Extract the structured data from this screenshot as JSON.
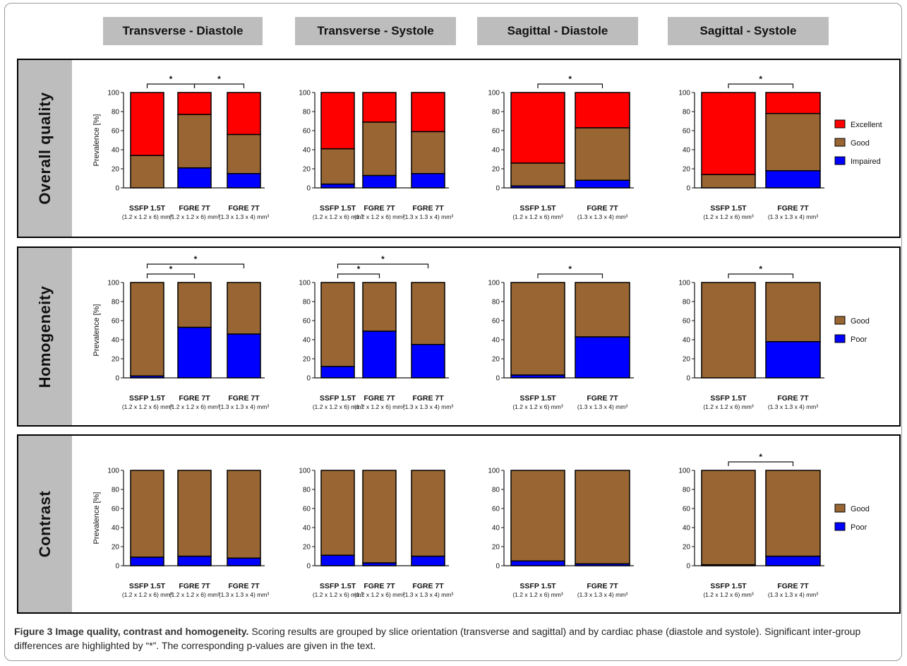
{
  "column_headers": [
    "Transverse - Diastole",
    "Transverse - Systole",
    "Sagittal - Diastole",
    "Sagittal - Systole"
  ],
  "row_labels": [
    "Overall quality",
    "Homogeneity",
    "Contrast"
  ],
  "y_axis_label": "Prevalence [%]",
  "y_ticks": [
    "0",
    "20",
    "40",
    "60",
    "80",
    "100"
  ],
  "groups_3": [
    {
      "name": "SSFP 1.5T",
      "sub": "(1.2 x 1.2 x 6) mm³"
    },
    {
      "name": "FGRE 7T",
      "sub": "(1.2 x 1.2 x 6) mm³"
    },
    {
      "name": "FGRE 7T",
      "sub": "(1.3 x 1.3 x 4) mm³"
    }
  ],
  "groups_2": [
    {
      "name": "SSFP 1.5T",
      "sub": "(1.2 x 1.2 x 6) mm³"
    },
    {
      "name": "FGRE 7T",
      "sub": "(1.3 x 1.3 x 4) mm³"
    }
  ],
  "significance_marker": "*",
  "colors": {
    "excellent": "#ff0000",
    "good": "#996633",
    "impaired": "#0000ff",
    "poor": "#0000ff"
  },
  "legends": {
    "overall": [
      "Excellent",
      "Good",
      "Impaired"
    ],
    "homogeneity": [
      "Good",
      "Poor"
    ],
    "contrast": [
      "Good",
      "Poor"
    ]
  },
  "chart_data": [
    {
      "type": "bar",
      "row": "Overall quality",
      "column": "Transverse - Diastole",
      "stacked": true,
      "ylim": [
        0,
        100
      ],
      "categories": [
        "SSFP 1.5T (1.2 x 1.2 x 6) mm³",
        "FGRE 7T (1.2 x 1.2 x 6) mm³",
        "FGRE 7T (1.3 x 1.3 x 4) mm³"
      ],
      "series": [
        {
          "name": "Impaired",
          "values": [
            0,
            21,
            15
          ]
        },
        {
          "name": "Good",
          "values": [
            34,
            56,
            41
          ]
        },
        {
          "name": "Excellent",
          "values": [
            66,
            23,
            44
          ]
        }
      ],
      "significance": [
        [
          0,
          1
        ],
        [
          1,
          2
        ]
      ]
    },
    {
      "type": "bar",
      "row": "Overall quality",
      "column": "Transverse - Systole",
      "stacked": true,
      "ylim": [
        0,
        100
      ],
      "categories": [
        "SSFP 1.5T (1.2 x 1.2 x 6) mm³",
        "FGRE 7T (1.2 x 1.2 x 6) mm³",
        "FGRE 7T (1.3 x 1.3 x 4) mm³"
      ],
      "series": [
        {
          "name": "Impaired",
          "values": [
            4,
            13,
            15
          ]
        },
        {
          "name": "Good",
          "values": [
            37,
            56,
            44
          ]
        },
        {
          "name": "Excellent",
          "values": [
            59,
            31,
            41
          ]
        }
      ],
      "significance": []
    },
    {
      "type": "bar",
      "row": "Overall quality",
      "column": "Sagittal - Diastole",
      "stacked": true,
      "ylim": [
        0,
        100
      ],
      "categories": [
        "SSFP 1.5T (1.2 x 1.2 x 6) mm³",
        "FGRE 7T (1.3 x 1.3 x 4) mm³"
      ],
      "series": [
        {
          "name": "Impaired",
          "values": [
            2,
            8
          ]
        },
        {
          "name": "Good",
          "values": [
            24,
            55
          ]
        },
        {
          "name": "Excellent",
          "values": [
            74,
            37
          ]
        }
      ],
      "significance": [
        [
          0,
          1
        ]
      ]
    },
    {
      "type": "bar",
      "row": "Overall quality",
      "column": "Sagittal - Systole",
      "stacked": true,
      "ylim": [
        0,
        100
      ],
      "categories": [
        "SSFP 1.5T (1.2 x 1.2 x 6) mm³",
        "FGRE 7T (1.3 x 1.3 x 4) mm³"
      ],
      "series": [
        {
          "name": "Impaired",
          "values": [
            0,
            18
          ]
        },
        {
          "name": "Good",
          "values": [
            14,
            60
          ]
        },
        {
          "name": "Excellent",
          "values": [
            86,
            22
          ]
        }
      ],
      "significance": [
        [
          0,
          1
        ]
      ]
    },
    {
      "type": "bar",
      "row": "Homogeneity",
      "column": "Transverse - Diastole",
      "stacked": true,
      "ylim": [
        0,
        100
      ],
      "categories": [
        "SSFP 1.5T (1.2 x 1.2 x 6)mm³",
        "FGRE 7T (1.2 x 1.2 x 6) mm³",
        "FGRE 7T (1.3 x 1.3 x 4) mm³"
      ],
      "series": [
        {
          "name": "Poor",
          "values": [
            2,
            53,
            46
          ]
        },
        {
          "name": "Good",
          "values": [
            98,
            47,
            54
          ]
        }
      ],
      "significance": [
        [
          0,
          1
        ],
        [
          0,
          2
        ]
      ]
    },
    {
      "type": "bar",
      "row": "Homogeneity",
      "column": "Transverse - Systole",
      "stacked": true,
      "ylim": [
        0,
        100
      ],
      "categories": [
        "SSFP 1.5T (1.2 x 1.2 x 6) mm³",
        "FGRE 7T (1.2 x 1.2 x 6) mm³",
        "FGRE 7T (1.3 x 1.3 x 4) mm³"
      ],
      "series": [
        {
          "name": "Poor",
          "values": [
            12,
            49,
            35
          ]
        },
        {
          "name": "Good",
          "values": [
            88,
            51,
            65
          ]
        }
      ],
      "significance": [
        [
          0,
          1
        ],
        [
          0,
          2
        ]
      ]
    },
    {
      "type": "bar",
      "row": "Homogeneity",
      "column": "Sagittal - Diastole",
      "stacked": true,
      "ylim": [
        0,
        100
      ],
      "categories": [
        "SSFP 1.5T (1.2 x 1.2 x 6) mm³",
        "FGRE 7T (1.3 x 1.3 x 4) mm³"
      ],
      "series": [
        {
          "name": "Poor",
          "values": [
            3,
            43
          ]
        },
        {
          "name": "Good",
          "values": [
            97,
            57
          ]
        }
      ],
      "significance": [
        [
          0,
          1
        ]
      ]
    },
    {
      "type": "bar",
      "row": "Homogeneity",
      "column": "Sagittal - Systole",
      "stacked": true,
      "ylim": [
        0,
        100
      ],
      "categories": [
        "SSFP 1.5T (1.2 x 1.2 x 6) mm³",
        "FGRE 7T (1.3 x 1.3 x 4) mm³"
      ],
      "series": [
        {
          "name": "Poor",
          "values": [
            0,
            38
          ]
        },
        {
          "name": "Good",
          "values": [
            100,
            62
          ]
        }
      ],
      "significance": [
        [
          0,
          1
        ]
      ]
    },
    {
      "type": "bar",
      "row": "Contrast",
      "column": "Transverse - Diastole",
      "stacked": true,
      "ylim": [
        0,
        100
      ],
      "categories": [
        "SSFP 1.5T (1.2 x 1.2 x 6) mm³",
        "FGRE 7T (1.2 x 1.2 x 6) mm³",
        "FGRE 7T (1.3 x 1.3 x 4) mm³"
      ],
      "series": [
        {
          "name": "Poor",
          "values": [
            9,
            10,
            8
          ]
        },
        {
          "name": "Good",
          "values": [
            91,
            90,
            92
          ]
        }
      ],
      "significance": []
    },
    {
      "type": "bar",
      "row": "Contrast",
      "column": "Transverse - Systole",
      "stacked": true,
      "ylim": [
        0,
        100
      ],
      "categories": [
        "SSFP 1.5T (1.2 x 1.2 x 6) mm³",
        "FGRE 7T (1.2 x 1.2 x 6) mm³",
        "FGRE 7T (1.3 x 1.3 x 4) mm³"
      ],
      "series": [
        {
          "name": "Poor",
          "values": [
            11,
            3,
            10
          ]
        },
        {
          "name": "Good",
          "values": [
            89,
            97,
            90
          ]
        }
      ],
      "significance": []
    },
    {
      "type": "bar",
      "row": "Contrast",
      "column": "Sagittal - Diastole",
      "stacked": true,
      "ylim": [
        0,
        100
      ],
      "categories": [
        "SSFP 1.5T (1.2 x 1.2 x 6) mm³",
        "FGRE 7T (1.3 x 1.3 x 4) mm³"
      ],
      "series": [
        {
          "name": "Poor",
          "values": [
            5,
            2
          ]
        },
        {
          "name": "Good",
          "values": [
            95,
            98
          ]
        }
      ],
      "significance": []
    },
    {
      "type": "bar",
      "row": "Contrast",
      "column": "Sagittal - Systole",
      "stacked": true,
      "ylim": [
        0,
        100
      ],
      "categories": [
        "SSFP 1.5T (1.2 x 1.2 x 6) mm³",
        "FGRE 7T (1.3 x 1.3 x 4) mm³"
      ],
      "series": [
        {
          "name": "Poor",
          "values": [
            1,
            10
          ]
        },
        {
          "name": "Good",
          "values": [
            99,
            90
          ]
        }
      ],
      "significance": [
        [
          0,
          1
        ]
      ]
    }
  ],
  "caption": {
    "lead": "Figure 3 Image quality, contrast and homogeneity.",
    "text": "Scoring results are grouped by slice orientation (transverse and sagittal) and by cardiac phase (diastole and systole). Significant inter-group differences are highlighted by “*”. The corresponding p-values are given in the text."
  }
}
